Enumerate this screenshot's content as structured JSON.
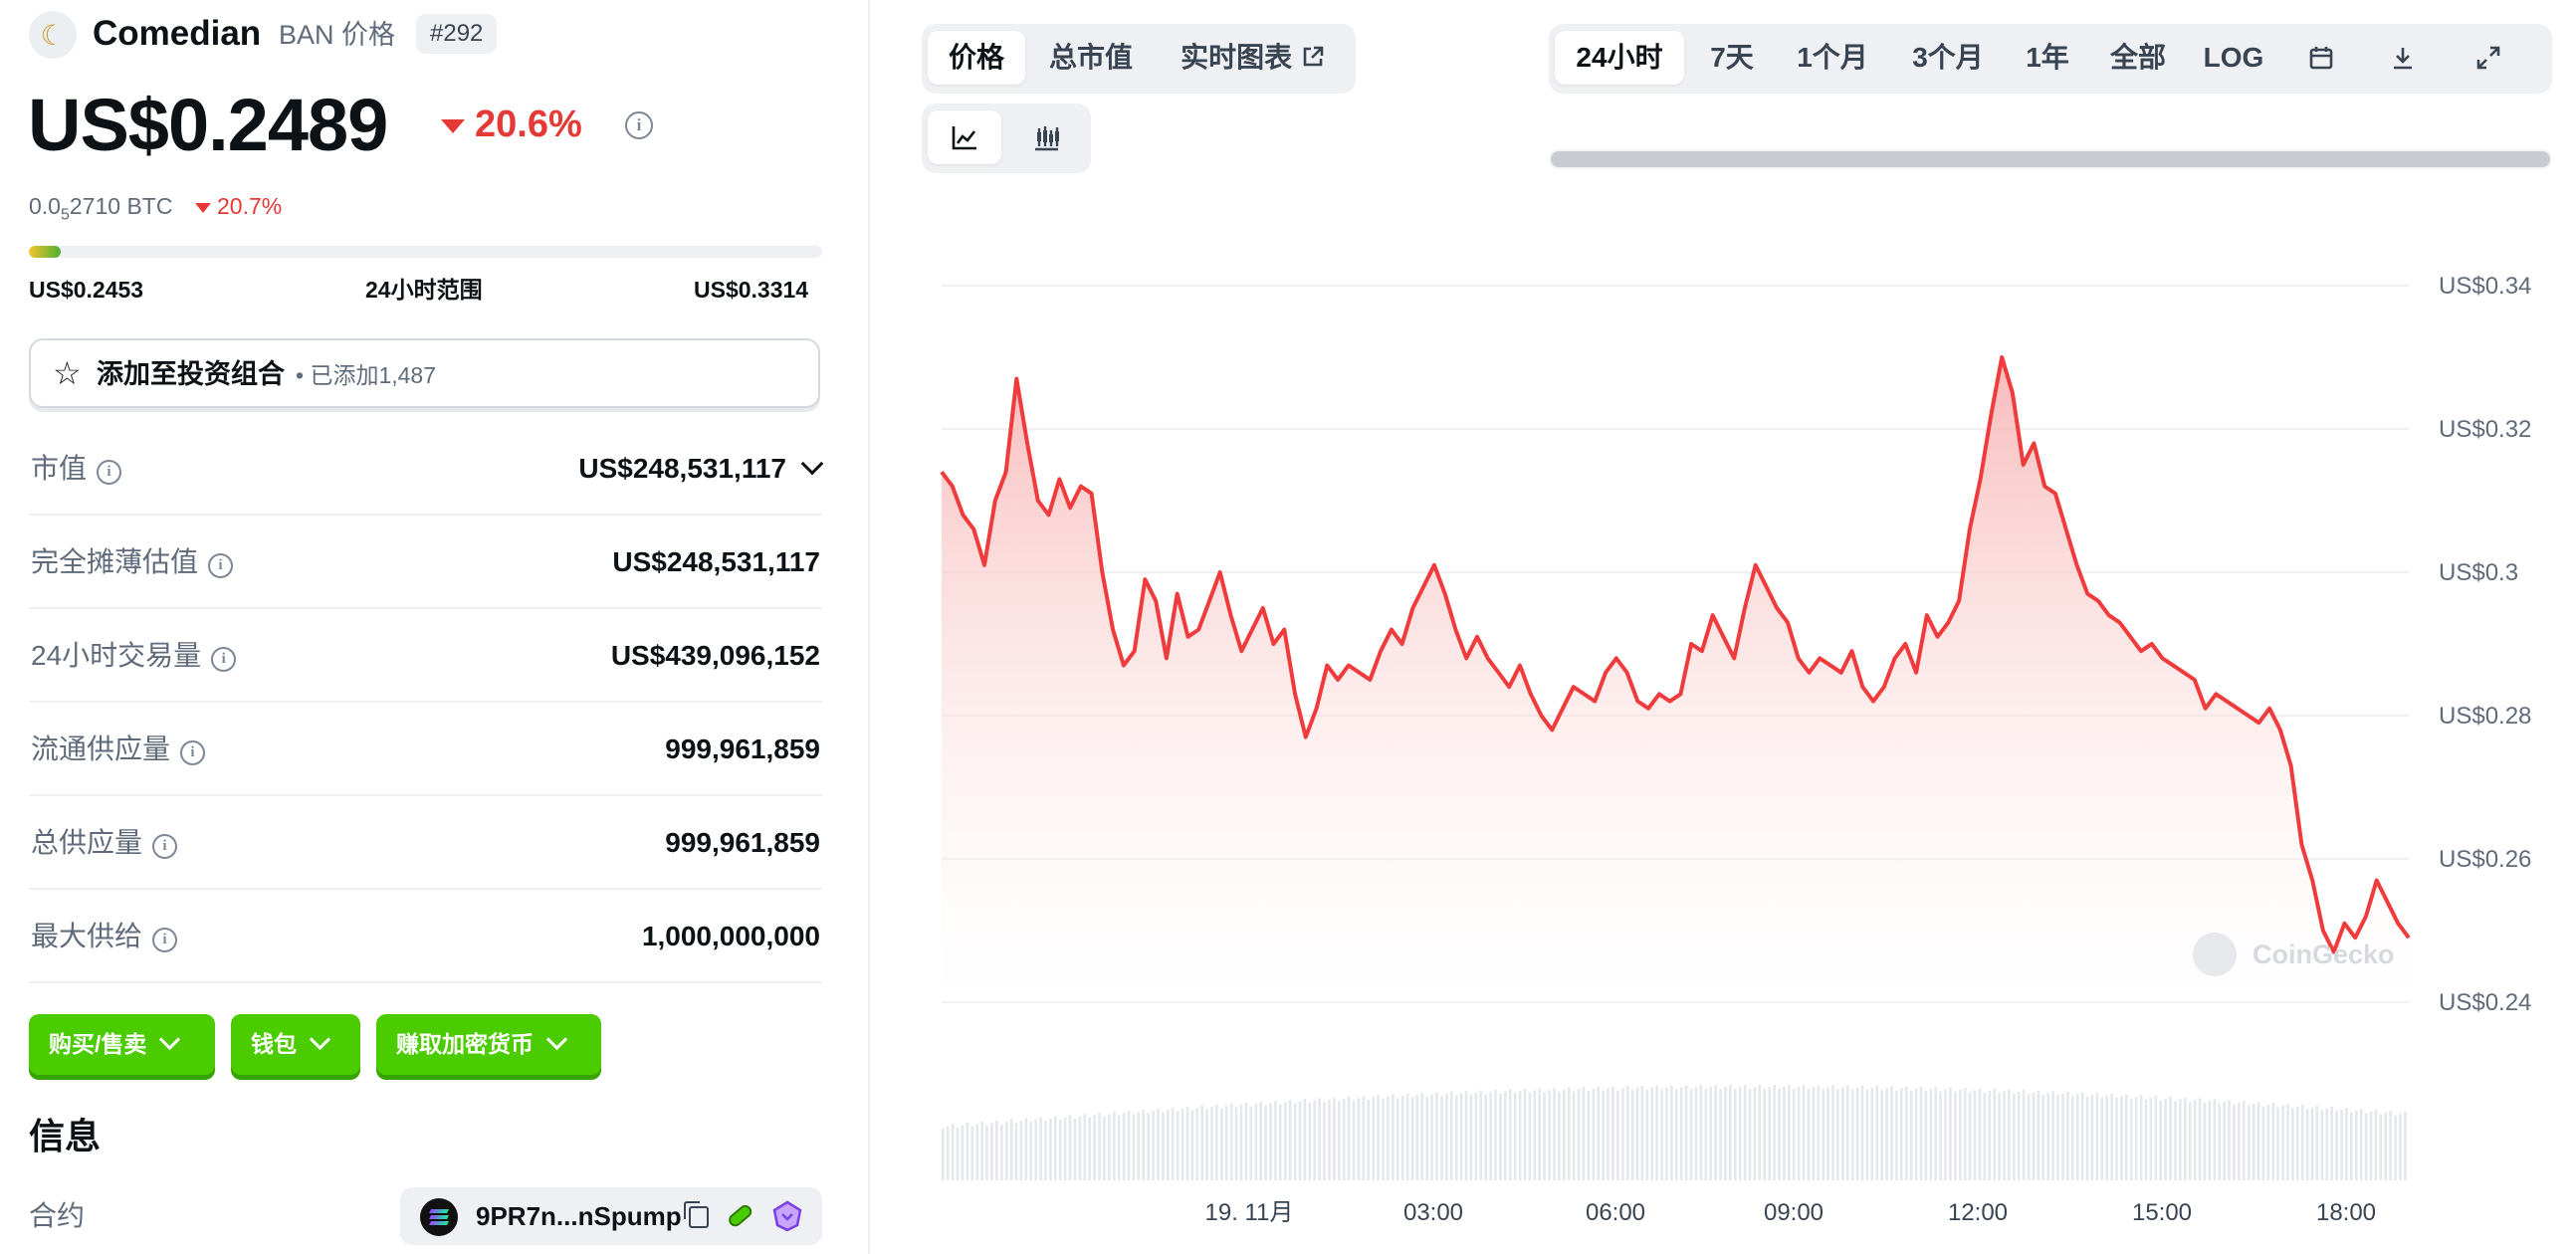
{
  "coin": {
    "name": "Comedian",
    "subtitle": "BAN 价格",
    "rank": "#292",
    "logo_icon": "comedian-banana-logo"
  },
  "price": {
    "usd": "US$0.2489",
    "change": "20.6%",
    "btc_prefix": "0.0",
    "btc_sub": "5",
    "btc_rest": "2710 BTC",
    "btc_change": "20.7%",
    "change_color": "#e53935"
  },
  "range_24h": {
    "low": "US$0.2453",
    "label": "24小时范围",
    "high": "US$0.3314",
    "position_fraction": 0.04
  },
  "portfolio": {
    "label": "添加至投资组合",
    "count": "• 已添加1,487"
  },
  "stats": [
    {
      "label": "市值",
      "value": "US$248,531,117"
    },
    {
      "label": "完全摊薄估值",
      "value": "US$248,531,117"
    },
    {
      "label": "24小时交易量",
      "value": "US$439,096,152"
    },
    {
      "label": "流通供应量",
      "value": "999,961,859"
    },
    {
      "label": "总供应量",
      "value": "999,961,859"
    },
    {
      "label": "最大供给",
      "value": "1,000,000,000"
    }
  ],
  "actions": {
    "buy_sell": "购买/售卖",
    "wallet": "钱包",
    "earn": "赚取加密货币",
    "accent": "#4bcc00"
  },
  "info": {
    "title": "信息",
    "contract_label": "合约",
    "contract_value": "9PR7n...nSpump"
  },
  "chart_tabs": {
    "price": "价格",
    "market_cap": "总市值",
    "live_chart": "实时图表"
  },
  "chart_type_icons": [
    "line-chart-icon",
    "candlestick-icon"
  ],
  "range_tabs": [
    "24小时",
    "7天",
    "1个月",
    "3个月",
    "1年",
    "全部",
    "LOG"
  ],
  "range_tool_icons": [
    "calendar-icon",
    "download-icon",
    "expand-icon"
  ],
  "watermark": "CoinGecko",
  "chart_data": {
    "type": "area",
    "line_color": "#ef3b3b",
    "ylim": [
      0.24,
      0.34
    ],
    "yticks": [
      "US$0.34",
      "US$0.32",
      "US$0.3",
      "US$0.28",
      "US$0.26",
      "US$0.24"
    ],
    "xticks": [
      "19. 11月",
      "03:00",
      "06:00",
      "09:00",
      "12:00",
      "15:00",
      "18:00"
    ],
    "series": [
      {
        "values": [
          0.314,
          0.312,
          0.308,
          0.306,
          0.301,
          0.31,
          0.314,
          0.327,
          0.318,
          0.31,
          0.308,
          0.313,
          0.309,
          0.312,
          0.311,
          0.3,
          0.292,
          0.287,
          0.289,
          0.299,
          0.296,
          0.288,
          0.297,
          0.291,
          0.292,
          0.296,
          0.3,
          0.294,
          0.289,
          0.292,
          0.295,
          0.29,
          0.292,
          0.283,
          0.277,
          0.281,
          0.287,
          0.285,
          0.287,
          0.286,
          0.285,
          0.289,
          0.292,
          0.29,
          0.295,
          0.298,
          0.301,
          0.297,
          0.292,
          0.288,
          0.291,
          0.288,
          0.286,
          0.284,
          0.287,
          0.283,
          0.28,
          0.278,
          0.281,
          0.284,
          0.283,
          0.282,
          0.286,
          0.288,
          0.286,
          0.282,
          0.281,
          0.283,
          0.282,
          0.283,
          0.29,
          0.289,
          0.294,
          0.291,
          0.288,
          0.295,
          0.301,
          0.298,
          0.295,
          0.293,
          0.288,
          0.286,
          0.288,
          0.287,
          0.286,
          0.289,
          0.284,
          0.282,
          0.284,
          0.288,
          0.29,
          0.286,
          0.294,
          0.291,
          0.293,
          0.296,
          0.306,
          0.313,
          0.322,
          0.33,
          0.325,
          0.315,
          0.318,
          0.312,
          0.311,
          0.306,
          0.301,
          0.297,
          0.296,
          0.294,
          0.293,
          0.291,
          0.289,
          0.29,
          0.288,
          0.287,
          0.286,
          0.285,
          0.281,
          0.283,
          0.282,
          0.281,
          0.28,
          0.279,
          0.281,
          0.278,
          0.273,
          0.262,
          0.257,
          0.25,
          0.247,
          0.251,
          0.249,
          0.252,
          0.257,
          0.254,
          0.251,
          0.249
        ]
      }
    ],
    "volume_bars": true
  }
}
